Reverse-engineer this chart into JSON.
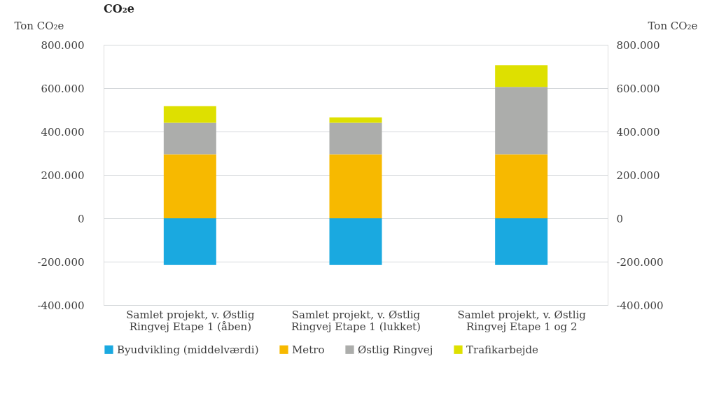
{
  "chart_data": {
    "type": "bar",
    "title": "CO₂e",
    "stacked": true,
    "categories": [
      "Samlet projekt, v. Østlig\nRingvej Etape 1 (åben)",
      "Samlet projekt, v. Østlig\nRingvej Etape 1 (lukket)",
      "Samlet projekt, v. Østlig\nRingvej Etape 1 og 2"
    ],
    "series": [
      {
        "name": "Byudvikling (middelværdi)",
        "color": "#1aa9e0",
        "values": [
          -215000,
          -215000,
          -215000
        ]
      },
      {
        "name": "Metro",
        "color": "#f7b900",
        "values": [
          295000,
          295000,
          295000
        ]
      },
      {
        "name": "Østlig Ringvej",
        "color": "#acadab",
        "values": [
          145000,
          145000,
          311000
        ]
      },
      {
        "name": "Trafikarbejde",
        "color": "#dee000",
        "values": [
          77000,
          25000,
          100000
        ]
      }
    ],
    "ylabel": "Ton CO₂e",
    "y2label": "Ton CO₂e",
    "ylim": [
      -400000,
      800000
    ],
    "yticks": [
      {
        "value": -400000,
        "label": "-400.000"
      },
      {
        "value": -200000,
        "label": "-200.000"
      },
      {
        "value": 0,
        "label": "0"
      },
      {
        "value": 200000,
        "label": "200.000"
      },
      {
        "value": 400000,
        "label": "400.000"
      },
      {
        "value": 600000,
        "label": "600.000"
      },
      {
        "value": 800000,
        "label": "800.000"
      }
    ],
    "y2lim": [
      -400000,
      800000
    ],
    "y2ticks": [
      {
        "value": -400000,
        "label": "-400.000"
      },
      {
        "value": -200000,
        "label": "-200.000"
      },
      {
        "value": 0,
        "label": "0"
      },
      {
        "value": 200000,
        "label": "200.000"
      },
      {
        "value": 400000,
        "label": "400.000"
      },
      {
        "value": 600000,
        "label": "600.000"
      },
      {
        "value": 800000,
        "label": "800.000"
      }
    ],
    "grid": "y",
    "legend": "bottom"
  }
}
